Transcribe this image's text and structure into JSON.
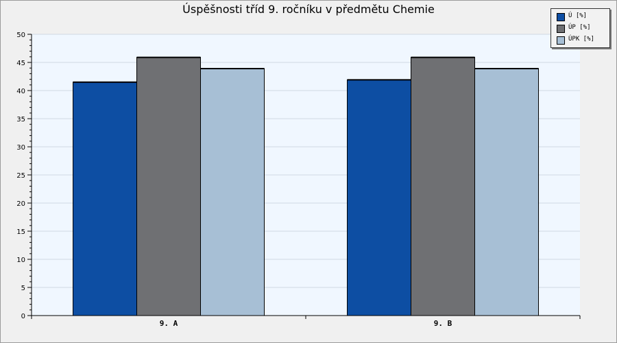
{
  "chart_data": {
    "type": "bar",
    "title": "Úspěšnosti tříd 9. ročníku v předmětu Chemie",
    "categories": [
      "9. A",
      "9. B"
    ],
    "series": [
      {
        "name": "Ú [%]",
        "color": "#0d4ea3",
        "values": [
          41.5,
          41.9
        ]
      },
      {
        "name": "ÚP [%]",
        "color": "#6f7073",
        "values": [
          45.9,
          45.9
        ]
      },
      {
        "name": "ÚPK [%]",
        "color": "#a7bfd5",
        "values": [
          43.9,
          43.9
        ]
      }
    ],
    "ylim": [
      0,
      50
    ],
    "yticks": [
      0,
      5,
      10,
      15,
      20,
      25,
      30,
      35,
      40,
      45,
      50
    ],
    "grid": true,
    "legend_position": "top-right",
    "plot_background": "#f0f7ff"
  }
}
